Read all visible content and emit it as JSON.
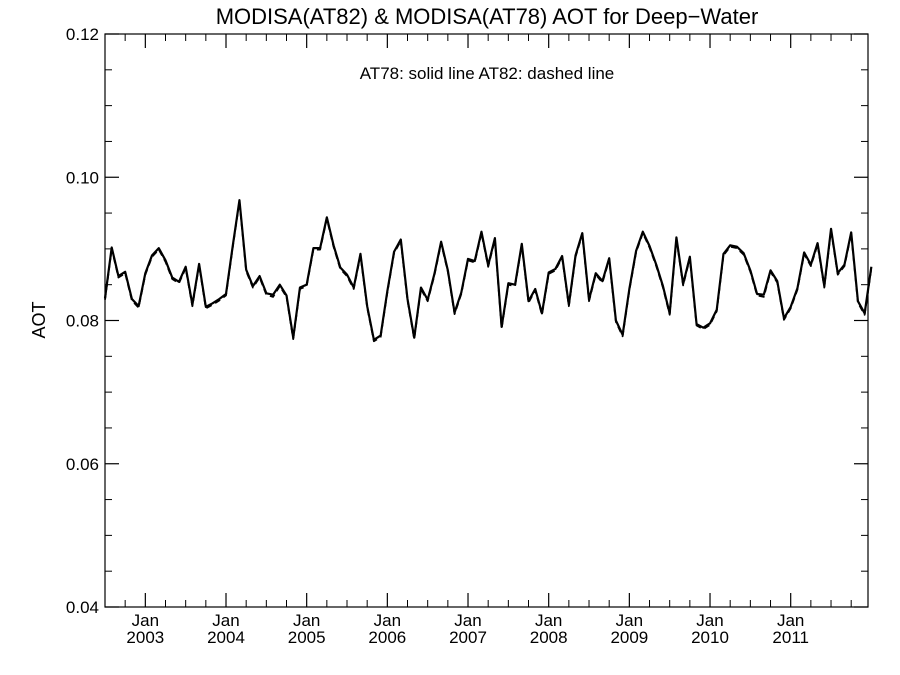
{
  "chart_data": {
    "type": "line",
    "title": "MODISA(AT82) & MODISA(AT78)  AOT for Deep−Water",
    "annotation": "AT78: solid line   AT82: dashed line",
    "ylabel": "AOT",
    "xlabel": "",
    "ylim": [
      0.04,
      0.12
    ],
    "yticks": [
      "0.04",
      "0.06",
      "0.08",
      "0.10",
      "0.12"
    ],
    "x_start": "2002-07",
    "x_range_months": [
      0,
      113.5
    ],
    "xticks": [
      {
        "top": "Jan",
        "bottom": "2003"
      },
      {
        "top": "Jan",
        "bottom": "2004"
      },
      {
        "top": "Jan",
        "bottom": "2005"
      },
      {
        "top": "Jan",
        "bottom": "2006"
      },
      {
        "top": "Jan",
        "bottom": "2007"
      },
      {
        "top": "Jan",
        "bottom": "2008"
      },
      {
        "top": "Jan",
        "bottom": "2009"
      },
      {
        "top": "Jan",
        "bottom": "2010"
      },
      {
        "top": "Jan",
        "bottom": "2011"
      }
    ],
    "grid": false,
    "series": [
      {
        "name": "AT78",
        "style": "solid",
        "color": "#000000",
        "values": [
          0.0831,
          0.0902,
          0.0862,
          0.0868,
          0.083,
          0.082,
          0.0866,
          0.0891,
          0.0901,
          0.0884,
          0.086,
          0.0854,
          0.0875,
          0.0822,
          0.0879,
          0.0819,
          0.0824,
          0.083,
          0.0837,
          0.0904,
          0.0968,
          0.0871,
          0.0848,
          0.0862,
          0.0838,
          0.0836,
          0.085,
          0.0835,
          0.0776,
          0.0846,
          0.085,
          0.0901,
          0.0901,
          0.0944,
          0.0905,
          0.0874,
          0.0864,
          0.0846,
          0.0893,
          0.082,
          0.0773,
          0.0779,
          0.0841,
          0.0896,
          0.0913,
          0.083,
          0.0776,
          0.0846,
          0.0829,
          0.0865,
          0.091,
          0.087,
          0.0811,
          0.0839,
          0.0886,
          0.0883,
          0.0924,
          0.0877,
          0.0915,
          0.0791,
          0.0852,
          0.085,
          0.0907,
          0.0827,
          0.0844,
          0.081,
          0.0867,
          0.0872,
          0.089,
          0.0822,
          0.0891,
          0.0922,
          0.0829,
          0.0866,
          0.0855,
          0.0887,
          0.08,
          0.078,
          0.0844,
          0.0897,
          0.0924,
          0.0904,
          0.0878,
          0.0848,
          0.081,
          0.0916,
          0.0851,
          0.0889,
          0.0795,
          0.079,
          0.0796,
          0.0815,
          0.0893,
          0.0905,
          0.0903,
          0.0894,
          0.087,
          0.0837,
          0.0836,
          0.087,
          0.0855,
          0.0803,
          0.0819,
          0.0845,
          0.0895,
          0.0878,
          0.0908,
          0.0848,
          0.0928,
          0.0866,
          0.0878,
          0.0923,
          0.0827,
          0.081,
          0.0875
        ]
      },
      {
        "name": "AT82",
        "style": "dashed",
        "color": "#000000",
        "values": [
          0.0829,
          0.09,
          0.086,
          0.0866,
          0.0828,
          0.0818,
          0.0864,
          0.0889,
          0.0899,
          0.0882,
          0.0858,
          0.0852,
          0.0873,
          0.082,
          0.0877,
          0.0817,
          0.0822,
          0.0828,
          0.0835,
          0.0902,
          0.0966,
          0.0869,
          0.0846,
          0.086,
          0.0836,
          0.0833,
          0.0848,
          0.0833,
          0.0774,
          0.0844,
          0.0848,
          0.0899,
          0.0899,
          0.0942,
          0.0903,
          0.0872,
          0.0862,
          0.0844,
          0.0891,
          0.0818,
          0.0771,
          0.0777,
          0.0839,
          0.0894,
          0.0911,
          0.0828,
          0.0774,
          0.0844,
          0.0827,
          0.0863,
          0.0908,
          0.0868,
          0.0809,
          0.0837,
          0.0884,
          0.0881,
          0.0922,
          0.0875,
          0.0913,
          0.0789,
          0.085,
          0.0848,
          0.0905,
          0.0825,
          0.0842,
          0.0808,
          0.0865,
          0.087,
          0.0888,
          0.082,
          0.0889,
          0.092,
          0.0827,
          0.0864,
          0.0853,
          0.0885,
          0.0798,
          0.0778,
          0.0842,
          0.0895,
          0.0922,
          0.0902,
          0.0876,
          0.0846,
          0.0808,
          0.0914,
          0.0849,
          0.0887,
          0.0793,
          0.0788,
          0.0794,
          0.0813,
          0.0891,
          0.0903,
          0.0901,
          0.0892,
          0.0868,
          0.0835,
          0.0833,
          0.0868,
          0.0853,
          0.0801,
          0.0817,
          0.0843,
          0.0893,
          0.0876,
          0.0906,
          0.0846,
          0.0926,
          0.0864,
          0.0876,
          0.0921,
          0.0825,
          0.0808,
          0.0873
        ]
      }
    ]
  }
}
